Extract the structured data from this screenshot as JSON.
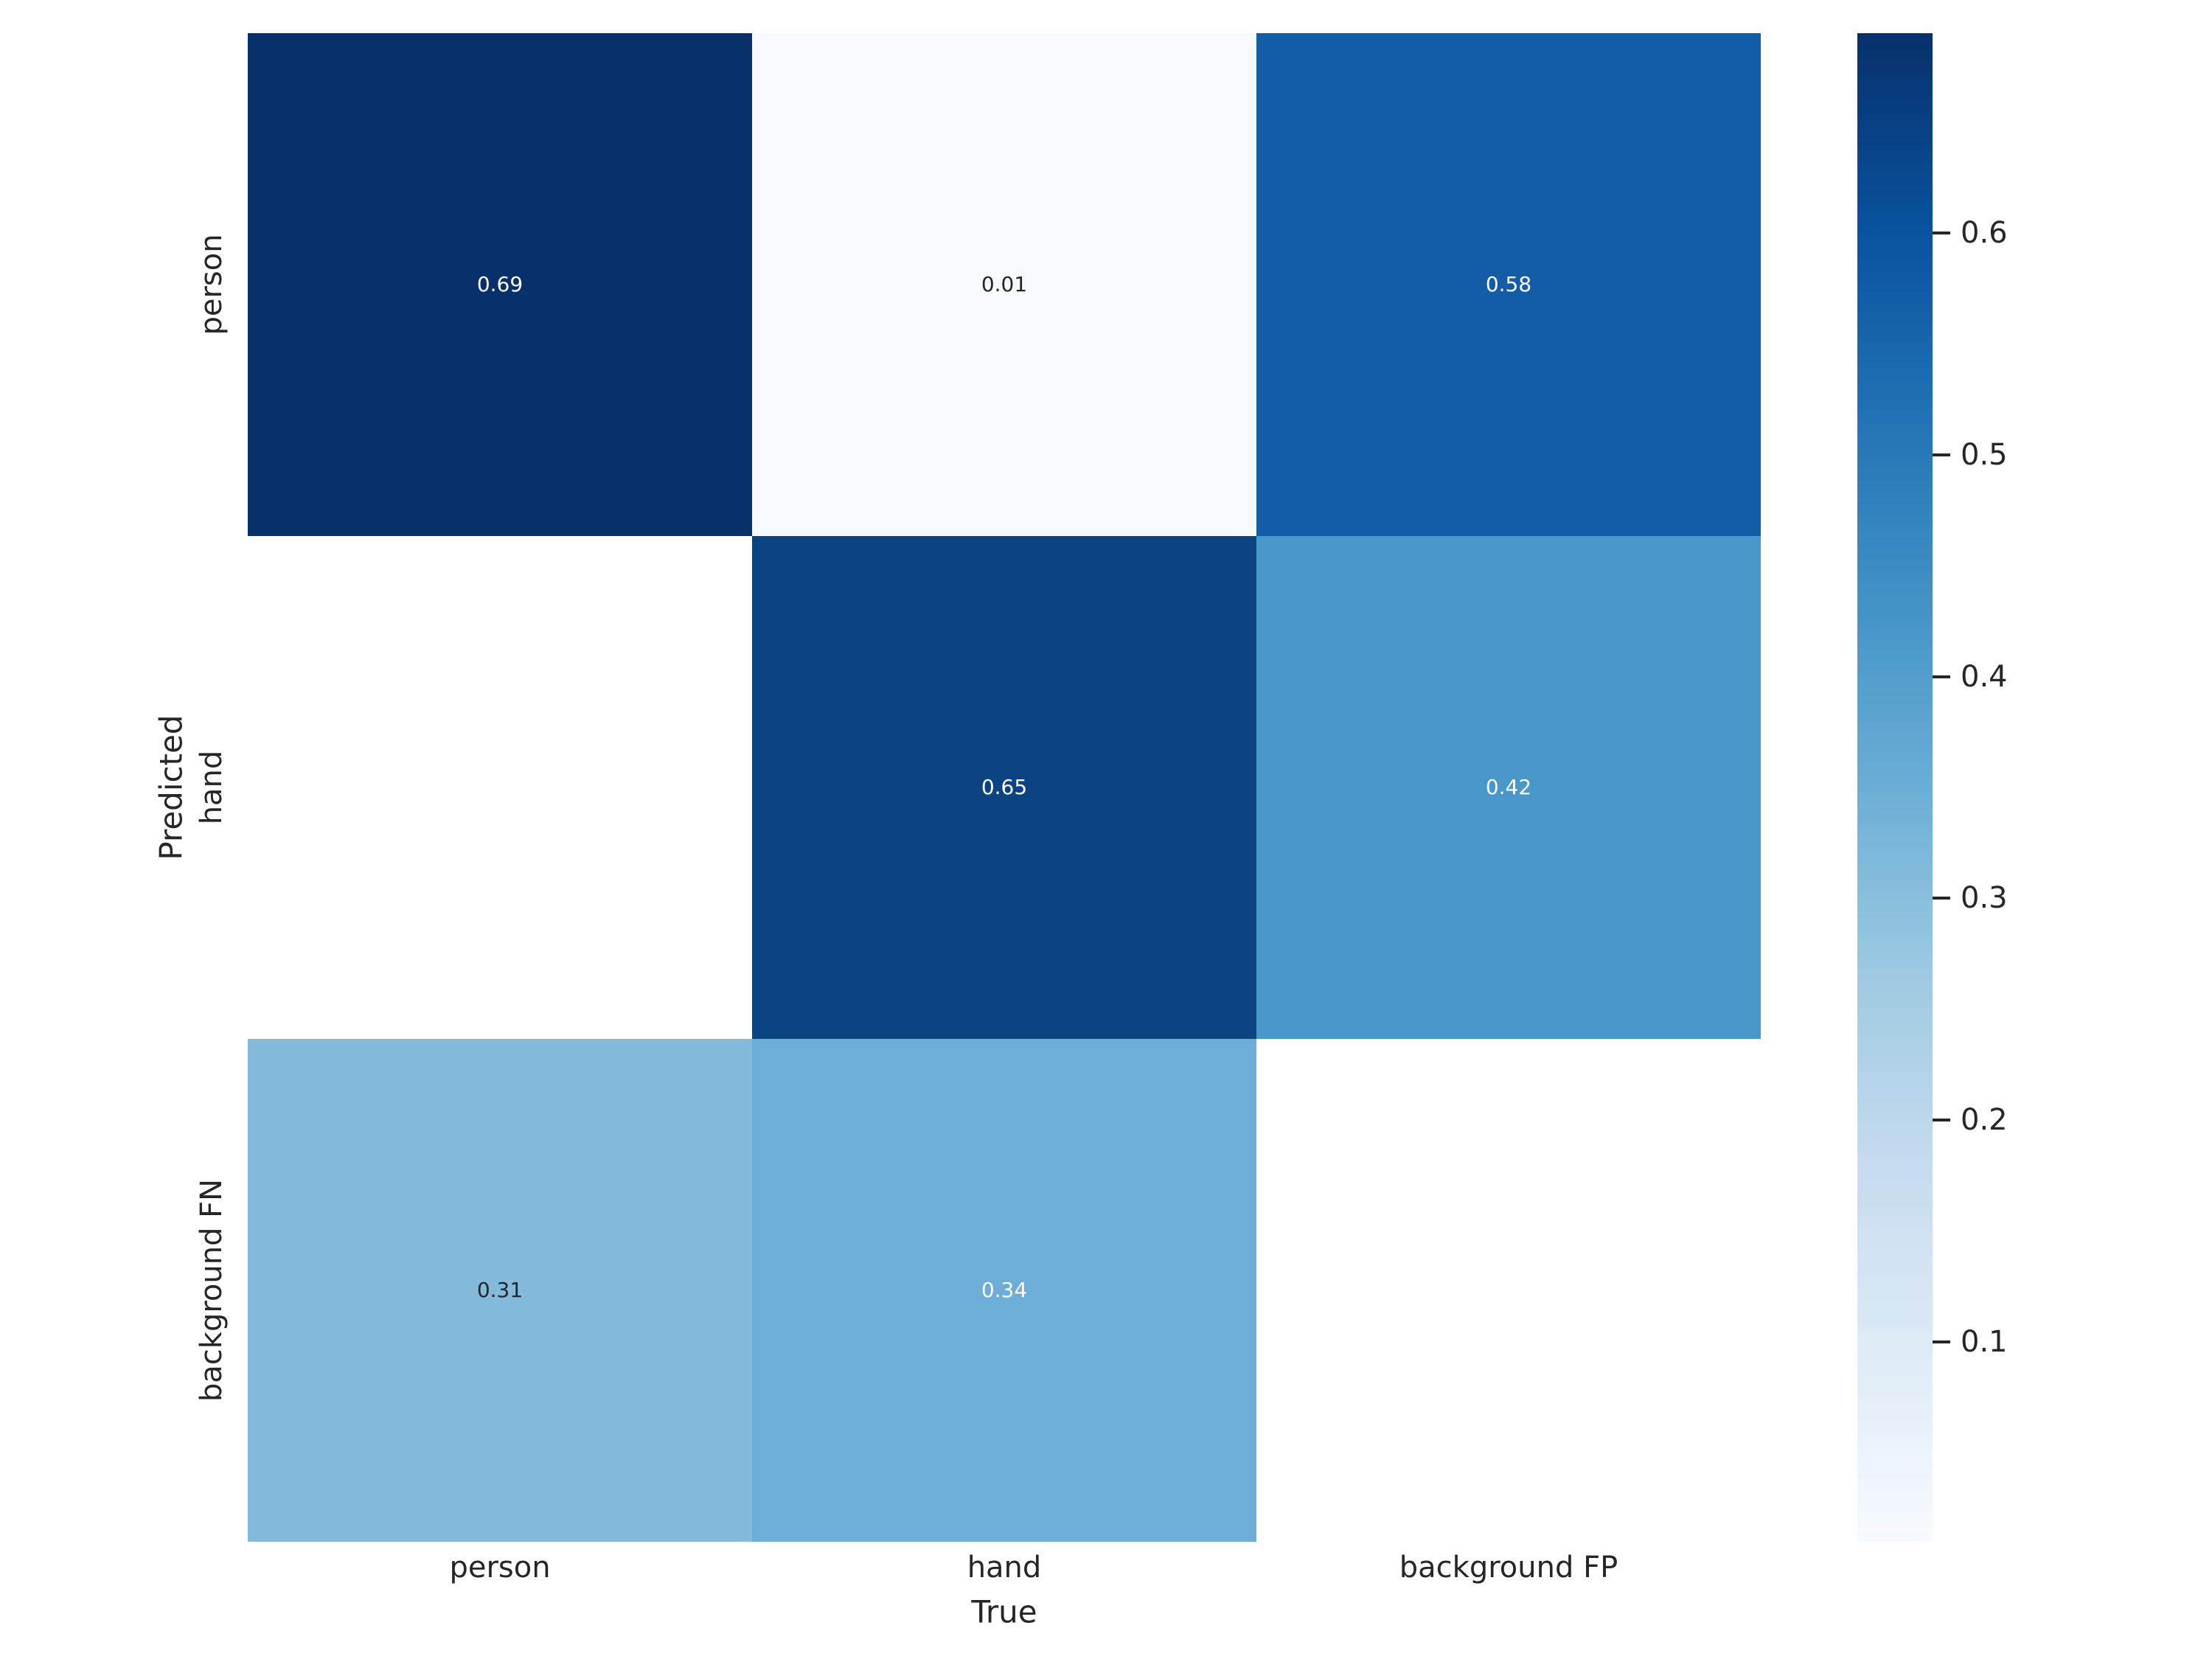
{
  "figure": {
    "background": "#ffffff"
  },
  "chart_data": {
    "type": "heatmap",
    "title": "",
    "xlabel": "True",
    "ylabel": "Predicted",
    "x_categories": [
      "person",
      "hand",
      "background FP"
    ],
    "y_categories": [
      "person",
      "hand",
      "background FN"
    ],
    "matrix": [
      [
        0.69,
        0.01,
        0.58
      ],
      [
        null,
        0.65,
        0.42
      ],
      [
        0.31,
        0.34,
        null
      ]
    ],
    "colormap": "Blues",
    "vmin": 0.01,
    "vmax": 0.69,
    "legend_position": "right-colorbar",
    "grid": false,
    "colormap_stops": [
      "#f7fbff",
      "#deebf7",
      "#c6dbef",
      "#9ecae1",
      "#6baed6",
      "#4292c6",
      "#2171b5",
      "#08519c",
      "#08306b"
    ],
    "colorbar_ticks": [
      {
        "value": 0.1,
        "label": "0.1"
      },
      {
        "value": 0.2,
        "label": "0.2"
      },
      {
        "value": 0.3,
        "label": "0.3"
      },
      {
        "value": 0.4,
        "label": "0.4"
      },
      {
        "value": 0.5,
        "label": "0.5"
      },
      {
        "value": 0.6,
        "label": "0.6"
      }
    ],
    "cells": [
      {
        "row": 0,
        "col": 0,
        "label": "0.69",
        "bg": "#08306b",
        "fg": "#ffffff"
      },
      {
        "row": 0,
        "col": 1,
        "label": "0.01",
        "bg": "#f6fafe",
        "fg": "#262626"
      },
      {
        "row": 0,
        "col": 2,
        "label": "0.58",
        "bg": "#155ca7",
        "fg": "#ffffff"
      },
      {
        "row": 1,
        "col": 1,
        "label": "0.65",
        "bg": "#0c4381",
        "fg": "#ffffff"
      },
      {
        "row": 1,
        "col": 2,
        "label": "0.42",
        "bg": "#4997c9",
        "fg": "#ffffff"
      },
      {
        "row": 2,
        "col": 0,
        "label": "0.31",
        "bg": "#84badc",
        "fg": "#262626"
      },
      {
        "row": 2,
        "col": 1,
        "label": "0.34",
        "bg": "#6caed8",
        "fg": "#ffffff"
      }
    ],
    "tick_color": "#262626",
    "label_color": "#262626"
  }
}
